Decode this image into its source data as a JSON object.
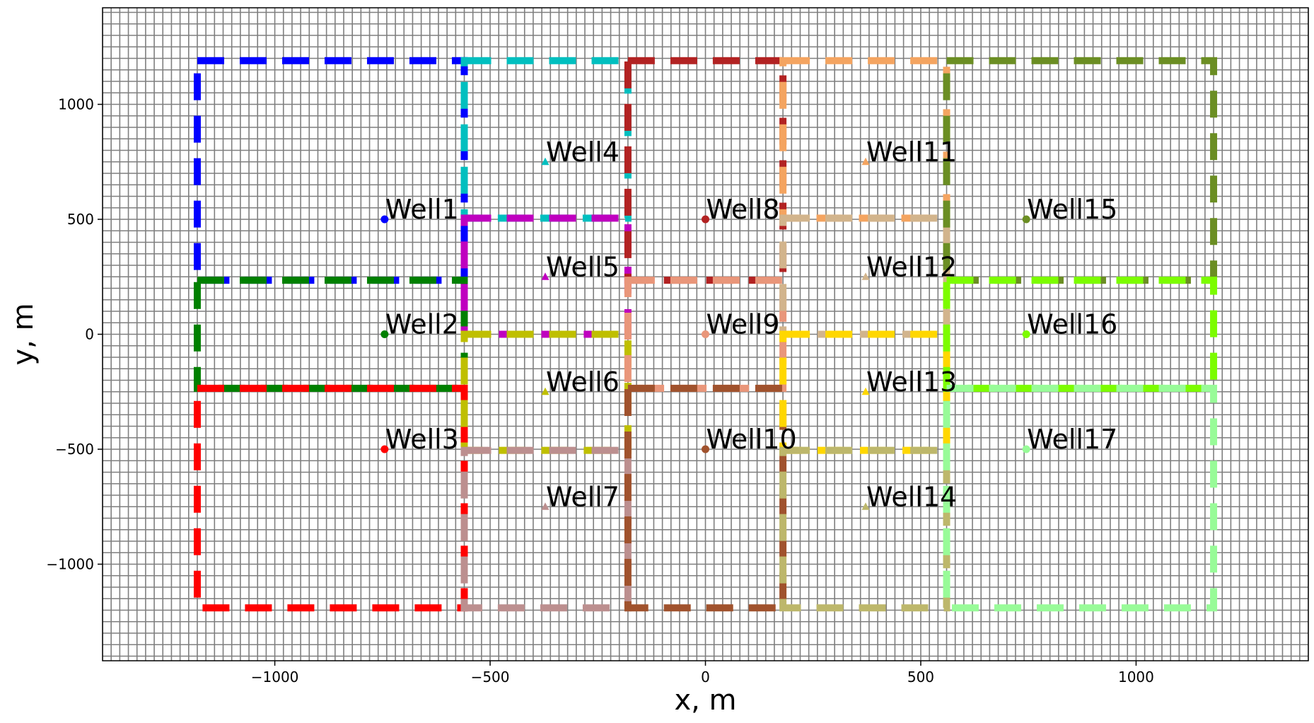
{
  "chart_data": {
    "type": "scatter",
    "xlabel": "x, m",
    "ylabel": "y, m",
    "xlim": [
      -1400,
      1400
    ],
    "ylim": [
      -1420,
      1420
    ],
    "grid": {
      "visible": true,
      "dx": 20,
      "dy": 50,
      "color": "#7f7f7f"
    },
    "x_ticks": [
      {
        "value": -1000,
        "label": "−1000"
      },
      {
        "value": -500,
        "label": "−500"
      },
      {
        "value": 0,
        "label": "0"
      },
      {
        "value": 500,
        "label": "500"
      },
      {
        "value": 1000,
        "label": "1000"
      }
    ],
    "y_ticks": [
      {
        "value": 1000,
        "label": "1000"
      },
      {
        "value": 500,
        "label": "500"
      },
      {
        "value": 0,
        "label": "0"
      },
      {
        "value": -500,
        "label": "−500"
      },
      {
        "value": -1000,
        "label": "−1000"
      }
    ],
    "wells": [
      {
        "label": "Well1",
        "x": -745,
        "y": 500,
        "color": "#0000ff",
        "marker": "circle"
      },
      {
        "label": "Well2",
        "x": -745,
        "y": 0,
        "color": "#008000",
        "marker": "circle"
      },
      {
        "label": "Well3",
        "x": -745,
        "y": -500,
        "color": "#ff0000",
        "marker": "circle"
      },
      {
        "label": "Well4",
        "x": -372,
        "y": 750,
        "color": "#00bfbf",
        "marker": "triangle"
      },
      {
        "label": "Well5",
        "x": -372,
        "y": 250,
        "color": "#bf00bf",
        "marker": "triangle"
      },
      {
        "label": "Well6",
        "x": -372,
        "y": -250,
        "color": "#bfbf00",
        "marker": "triangle"
      },
      {
        "label": "Well7",
        "x": -372,
        "y": -750,
        "color": "#bc8f8f",
        "marker": "triangle"
      },
      {
        "label": "Well8",
        "x": 0,
        "y": 500,
        "color": "#b22222",
        "marker": "circle"
      },
      {
        "label": "Well9",
        "x": 0,
        "y": 0,
        "color": "#e9967a",
        "marker": "circle"
      },
      {
        "label": "Well10",
        "x": 0,
        "y": -500,
        "color": "#a0522d",
        "marker": "circle"
      },
      {
        "label": "Well11",
        "x": 372,
        "y": 750,
        "color": "#f4a460",
        "marker": "triangle"
      },
      {
        "label": "Well12",
        "x": 372,
        "y": 250,
        "color": "#d2b48c",
        "marker": "triangle"
      },
      {
        "label": "Well13",
        "x": 372,
        "y": -250,
        "color": "#ffd700",
        "marker": "triangle"
      },
      {
        "label": "Well14",
        "x": 372,
        "y": -750,
        "color": "#bdb76b",
        "marker": "triangle"
      },
      {
        "label": "Well15",
        "x": 745,
        "y": 500,
        "color": "#6b8e23",
        "marker": "circle"
      },
      {
        "label": "Well16",
        "x": 745,
        "y": 0,
        "color": "#7cfc00",
        "marker": "circle"
      },
      {
        "label": "Well17",
        "x": 745,
        "y": -500,
        "color": "#98fb98",
        "marker": "circle"
      }
    ],
    "regions": [
      {
        "color": "#0000ff",
        "x1": -1180,
        "x2": -560,
        "y1": 235,
        "y2": 1190
      },
      {
        "color": "#008000",
        "x1": -1180,
        "x2": -560,
        "y1": -235,
        "y2": 235
      },
      {
        "color": "#ff0000",
        "x1": -1180,
        "x2": -560,
        "y1": -1190,
        "y2": -235
      },
      {
        "color": "#00bfbf",
        "x1": -560,
        "x2": -180,
        "y1": 505,
        "y2": 1190
      },
      {
        "color": "#bf00bf",
        "x1": -560,
        "x2": -180,
        "y1": 0,
        "y2": 505
      },
      {
        "color": "#bfbf00",
        "x1": -560,
        "x2": -180,
        "y1": -505,
        "y2": 0
      },
      {
        "color": "#bc8f8f",
        "x1": -560,
        "x2": -180,
        "y1": -1190,
        "y2": -505
      },
      {
        "color": "#b22222",
        "x1": -180,
        "x2": 180,
        "y1": 235,
        "y2": 1190
      },
      {
        "color": "#e9967a",
        "x1": -180,
        "x2": 180,
        "y1": -235,
        "y2": 235
      },
      {
        "color": "#a0522d",
        "x1": -180,
        "x2": 180,
        "y1": -1190,
        "y2": -235
      },
      {
        "color": "#f4a460",
        "x1": 180,
        "x2": 560,
        "y1": 505,
        "y2": 1190
      },
      {
        "color": "#d2b48c",
        "x1": 180,
        "x2": 560,
        "y1": 0,
        "y2": 505
      },
      {
        "color": "#ffd700",
        "x1": 180,
        "x2": 560,
        "y1": -505,
        "y2": 0
      },
      {
        "color": "#bdb76b",
        "x1": 180,
        "x2": 560,
        "y1": -1190,
        "y2": -505
      },
      {
        "color": "#6b8e23",
        "x1": 560,
        "x2": 1180,
        "y1": 235,
        "y2": 1190
      },
      {
        "color": "#7cfc00",
        "x1": 560,
        "x2": 1180,
        "y1": -235,
        "y2": 235
      },
      {
        "color": "#98fb98",
        "x1": 560,
        "x2": 1180,
        "y1": -1190,
        "y2": -235
      }
    ]
  }
}
